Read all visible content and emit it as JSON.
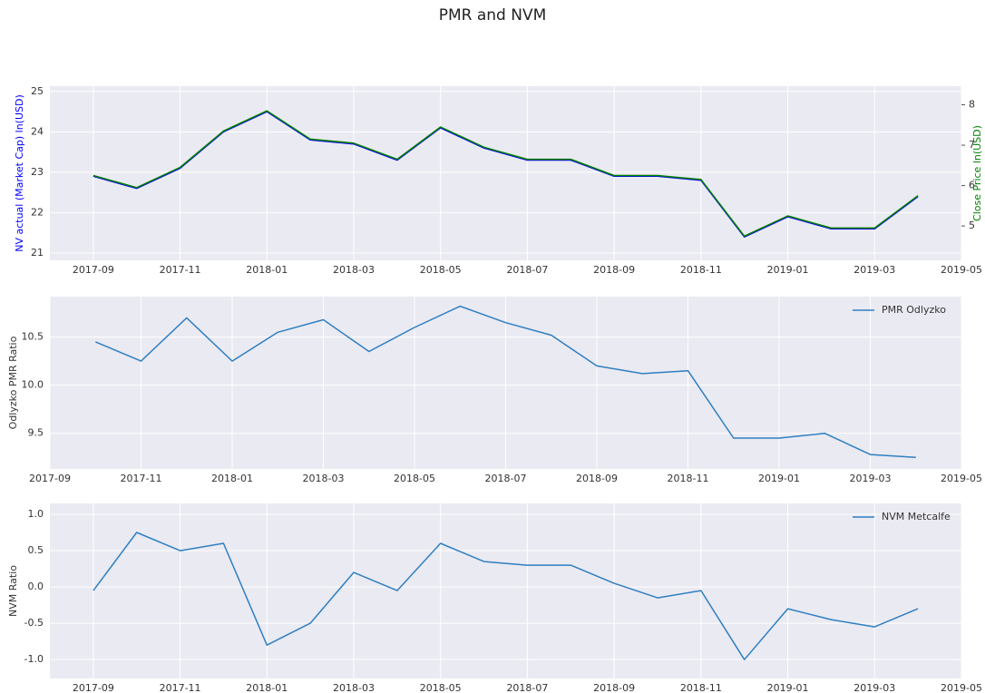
{
  "title": "PMR and NVM",
  "chart_data": [
    {
      "type": "line",
      "ylabel": "NV actual (Market Cap) ln(USD)",
      "y2label": "Close Price ln(USD)",
      "x": [
        "2017-09",
        "2017-10",
        "2017-11",
        "2017-12",
        "2018-01",
        "2018-02",
        "2018-03",
        "2018-04",
        "2018-05",
        "2018-06",
        "2018-07",
        "2018-08",
        "2018-09",
        "2018-10",
        "2018-11",
        "2018-12",
        "2019-01",
        "2019-02",
        "2019-03",
        "2019-04"
      ],
      "series": [
        {
          "color": "#0000ff",
          "values": [
            22.9,
            22.6,
            23.1,
            24.0,
            24.5,
            23.8,
            23.7,
            23.3,
            24.1,
            23.6,
            23.3,
            23.3,
            22.9,
            22.9,
            22.8,
            21.4,
            21.9,
            21.6,
            21.6,
            22.4
          ]
        },
        {
          "color": "#008000",
          "axis": "y2",
          "values": [
            6.25,
            5.95,
            6.45,
            7.35,
            7.85,
            7.15,
            7.05,
            6.65,
            7.45,
            6.95,
            6.65,
            6.65,
            6.25,
            6.25,
            6.15,
            4.75,
            5.25,
            4.95,
            4.95,
            5.75
          ]
        }
      ],
      "xlim": [
        "2017-08",
        "2019-05"
      ],
      "xticks": [
        "2017-09",
        "2017-11",
        "2018-01",
        "2018-03",
        "2018-05",
        "2018-07",
        "2018-09",
        "2018-11",
        "2019-01",
        "2019-03",
        "2019-05"
      ],
      "ylim": [
        20.82,
        25.13
      ],
      "yticks": [
        21,
        22,
        23,
        24,
        25
      ],
      "y2lim": [
        4.15,
        8.46
      ],
      "y2ticks": [
        5,
        6,
        7,
        8
      ],
      "grid": true
    },
    {
      "type": "line",
      "ylabel": "Odlyzko PMR Ratio",
      "x": [
        "2017-10",
        "2017-11",
        "2017-12",
        "2018-01",
        "2018-02",
        "2018-03",
        "2018-04",
        "2018-05",
        "2018-06",
        "2018-07",
        "2018-08",
        "2018-09",
        "2018-10",
        "2018-11",
        "2018-12",
        "2019-01",
        "2019-02",
        "2019-03",
        "2019-04"
      ],
      "series": [
        {
          "name": "PMR Odlyzko",
          "color": "#2f7fc1",
          "values": [
            10.45,
            10.25,
            10.7,
            10.25,
            10.55,
            10.68,
            10.35,
            10.6,
            10.82,
            10.65,
            10.52,
            10.2,
            10.12,
            10.15,
            9.45,
            9.45,
            9.5,
            9.28,
            9.25
          ]
        }
      ],
      "xlim": [
        "2017-09",
        "2019-05"
      ],
      "xticks": [
        "2017-09",
        "2017-11",
        "2018-01",
        "2018-03",
        "2018-05",
        "2018-07",
        "2018-09",
        "2018-11",
        "2019-01",
        "2019-03",
        "2019-05"
      ],
      "ylim": [
        9.13,
        10.92
      ],
      "yticks": [
        9.5,
        {
          "value": 10,
          "label": "10.0"
        },
        10.5
      ],
      "grid": true,
      "legend": "upper right"
    },
    {
      "type": "line",
      "ylabel": "NVM Ratio",
      "x": [
        "2017-09",
        "2017-10",
        "2017-11",
        "2017-12",
        "2018-01",
        "2018-02",
        "2018-03",
        "2018-04",
        "2018-05",
        "2018-06",
        "2018-07",
        "2018-08",
        "2018-09",
        "2018-10",
        "2018-11",
        "2018-12",
        "2019-01",
        "2019-02",
        "2019-03",
        "2019-04"
      ],
      "series": [
        {
          "name": "NVM Metcalfe",
          "color": "#2f7fc1",
          "values": [
            -0.05,
            0.75,
            0.5,
            0.6,
            -0.8,
            -0.5,
            0.2,
            -0.05,
            0.6,
            0.35,
            0.3,
            0.3,
            0.05,
            -0.15,
            -0.05,
            -1.0,
            -0.3,
            -0.45,
            -0.55,
            -0.3
          ]
        }
      ],
      "xlim": [
        "2017-08",
        "2019-05"
      ],
      "xticks": [
        "2017-09",
        "2017-11",
        "2018-01",
        "2018-03",
        "2018-05",
        "2018-07",
        "2018-09",
        "2018-11",
        "2019-01",
        "2019-03",
        "2019-05"
      ],
      "ylim": [
        -1.26,
        1.15
      ],
      "yticks": [
        {
          "value": -1,
          "label": "-1.0"
        },
        -0.5,
        {
          "value": 0,
          "label": "0.0"
        },
        0.5,
        {
          "value": 1,
          "label": "1.0"
        }
      ],
      "grid": true,
      "legend": "upper right"
    }
  ]
}
